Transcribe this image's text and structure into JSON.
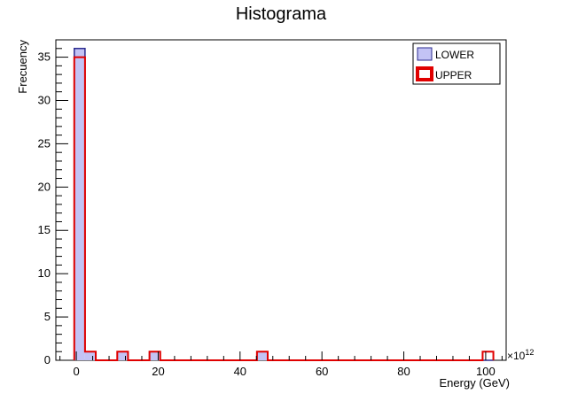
{
  "chart_data": {
    "type": "bar",
    "title": "Histograma",
    "xlabel": "Energy (GeV)",
    "ylabel": "Frecuency",
    "x_exponent_base": "×10",
    "x_exponent_power": "12",
    "xlim": [
      -5,
      105
    ],
    "ylim": [
      0,
      37
    ],
    "x_ticks": [
      0,
      20,
      40,
      60,
      80,
      100
    ],
    "y_ticks": [
      0,
      5,
      10,
      15,
      20,
      25,
      30,
      35
    ],
    "legend_position": "top-right",
    "bin_edges": [
      -0.5,
      2.125,
      4.75,
      7.375,
      10.0,
      12.625,
      15.25,
      17.875,
      20.5,
      23.125,
      25.75,
      28.375,
      31.0,
      33.625,
      36.25,
      38.875,
      41.5,
      44.125,
      46.75,
      49.375,
      52.0,
      54.625,
      57.25,
      59.875,
      62.5,
      65.125,
      67.75,
      70.375,
      73.0,
      75.625,
      78.25,
      80.875,
      83.5,
      86.125,
      88.75,
      91.375,
      94.0,
      96.625,
      99.25,
      101.875
    ],
    "series": [
      {
        "name": "LOWER",
        "fill": "#c3c3f5",
        "line": "#2b2b8f",
        "values": [
          36,
          1,
          0,
          0,
          1,
          0,
          0,
          1,
          0,
          0,
          0,
          0,
          0,
          0,
          0,
          0,
          0,
          1,
          0,
          0,
          0,
          0,
          0,
          0,
          0,
          0,
          0,
          0,
          0,
          0,
          0,
          0,
          0,
          0,
          0,
          0,
          0,
          0,
          0
        ]
      },
      {
        "name": "UPPER",
        "fill": "none",
        "line": "#e00000",
        "values": [
          35,
          1,
          0,
          0,
          1,
          0,
          0,
          1,
          0,
          0,
          0,
          0,
          0,
          0,
          0,
          0,
          0,
          1,
          0,
          0,
          0,
          0,
          0,
          0,
          0,
          0,
          0,
          0,
          0,
          0,
          0,
          0,
          0,
          0,
          0,
          0,
          0,
          0,
          1
        ]
      }
    ]
  }
}
